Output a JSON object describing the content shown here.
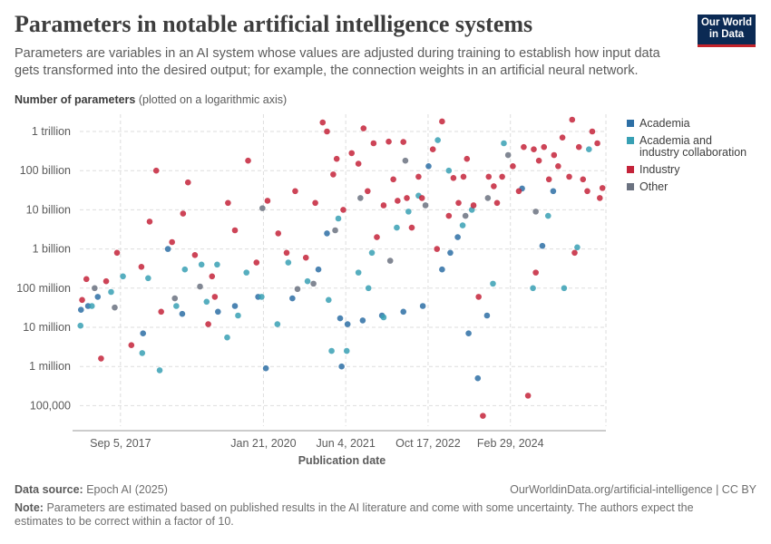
{
  "title": "Parameters in notable artificial intelligence systems",
  "subtitle": "Parameters are variables in an AI system whose values are adjusted during training to establish how input data gets transformed into the desired output; for example, the connection weights in an artificial neural network.",
  "logo": {
    "line1": "Our World",
    "line2": "in Data"
  },
  "y_axis_title": {
    "bold": "Number of parameters",
    "note": "(plotted on a logarithmic axis)"
  },
  "footer": {
    "source_label": "Data source:",
    "source": "Epoch AI (2025)",
    "url": "OurWorldinData.org/artificial-intelligence | CC BY",
    "note_label": "Note:",
    "note": "Parameters are estimated based on published results in the AI literature and come with some uncertainty. The authors expect the estimates to be correct within a factor of 10."
  },
  "chart_data": {
    "type": "scatter",
    "xlabel": "Publication date",
    "ylabel": "Number of parameters",
    "y_scale": "log",
    "xlim": [
      "2017-01-01",
      "2025-10-01"
    ],
    "ylim": [
      30000,
      2000000000000
    ],
    "x_ticks": [
      {
        "date": "2017-09-05",
        "label": "Sep 5, 2017"
      },
      {
        "date": "2020-01-21",
        "label": "Jan 21, 2020"
      },
      {
        "date": "2021-06-04",
        "label": "Jun 4, 2021"
      },
      {
        "date": "2022-10-17",
        "label": "Oct 17, 2022"
      },
      {
        "date": "2024-02-29",
        "label": "Feb 29, 2024"
      }
    ],
    "y_ticks": [
      {
        "value": 100000,
        "label": "100,000"
      },
      {
        "value": 1000000,
        "label": "1 million"
      },
      {
        "value": 10000000,
        "label": "10 million"
      },
      {
        "value": 100000000,
        "label": "100 million"
      },
      {
        "value": 1000000000,
        "label": "1 billion"
      },
      {
        "value": 10000000000,
        "label": "10 billion"
      },
      {
        "value": 100000000000,
        "label": "100 billion"
      },
      {
        "value": 1000000000000,
        "label": "1 trillion"
      }
    ],
    "grid": "dashed",
    "legend_position": "right",
    "series": [
      {
        "name": "Academia",
        "color": "#2d6fa5",
        "points": [
          [
            "2017-01-08",
            28000000
          ],
          [
            "2017-02-20",
            35000000
          ],
          [
            "2017-04-20",
            60000000
          ],
          [
            "2018-01-20",
            7000000
          ],
          [
            "2018-06-20",
            1000000000
          ],
          [
            "2018-09-15",
            22000000
          ],
          [
            "2019-04-20",
            25000000
          ],
          [
            "2019-08-01",
            35000000
          ],
          [
            "2019-12-20",
            60000000
          ],
          [
            "2020-02-05",
            900000
          ],
          [
            "2020-07-15",
            55000000
          ],
          [
            "2020-12-20",
            300000000
          ],
          [
            "2021-02-10",
            2500000000
          ],
          [
            "2021-05-01",
            17000000
          ],
          [
            "2021-05-10",
            1000000
          ],
          [
            "2021-06-15",
            12000000
          ],
          [
            "2021-09-15",
            15000000
          ],
          [
            "2022-01-10",
            20000000
          ],
          [
            "2022-05-20",
            25000000
          ],
          [
            "2022-09-15",
            35000000
          ],
          [
            "2023-01-10",
            300000000
          ],
          [
            "2023-04-15",
            2000000000
          ],
          [
            "2023-06-20",
            7000000
          ],
          [
            "2023-08-15",
            500000
          ],
          [
            "2023-10-10",
            20000000
          ],
          [
            "2024-05-10",
            35000000000
          ],
          [
            "2024-09-10",
            1200000000
          ],
          [
            "2024-11-15",
            30000000000
          ],
          [
            "2022-10-20",
            130000000000
          ],
          [
            "2023-03-01",
            800000000
          ]
        ]
      },
      {
        "name": "Academia and industry collaboration",
        "color": "#38a0b4",
        "points": [
          [
            "2017-01-05",
            11000000
          ],
          [
            "2017-03-15",
            35000000
          ],
          [
            "2017-07-10",
            80000000
          ],
          [
            "2017-09-20",
            200000000
          ],
          [
            "2018-01-15",
            2200000
          ],
          [
            "2018-02-20",
            180000000
          ],
          [
            "2018-05-01",
            800000
          ],
          [
            "2018-08-10",
            35000000
          ],
          [
            "2018-10-01",
            300000000
          ],
          [
            "2019-01-10",
            400000000
          ],
          [
            "2019-02-10",
            45000000
          ],
          [
            "2019-04-15",
            400000000
          ],
          [
            "2019-06-15",
            5500000
          ],
          [
            "2019-08-20",
            20000000
          ],
          [
            "2019-10-10",
            250000000
          ],
          [
            "2020-01-10",
            60000000
          ],
          [
            "2020-04-15",
            12000000
          ],
          [
            "2020-06-20",
            450000000
          ],
          [
            "2020-10-15",
            150000000
          ],
          [
            "2021-02-20",
            50000000
          ],
          [
            "2021-03-10",
            2500000
          ],
          [
            "2021-04-20",
            6000000000
          ],
          [
            "2021-06-10",
            2500000
          ],
          [
            "2021-08-20",
            250000000
          ],
          [
            "2021-10-20",
            100000000
          ],
          [
            "2022-01-20",
            18000000
          ],
          [
            "2022-04-10",
            3500000000
          ],
          [
            "2022-06-20",
            9000000000
          ],
          [
            "2022-08-20",
            23000000000
          ],
          [
            "2022-12-15",
            600000000000
          ],
          [
            "2023-02-20",
            100000000000
          ],
          [
            "2023-05-15",
            4000000000
          ],
          [
            "2023-07-10",
            10000000000
          ],
          [
            "2023-11-15",
            130000000
          ],
          [
            "2024-01-20",
            500000000000
          ],
          [
            "2024-07-15",
            100000000
          ],
          [
            "2025-01-20",
            100000000
          ],
          [
            "2025-04-10",
            1100000000
          ],
          [
            "2025-06-20",
            350000000000
          ],
          [
            "2021-11-10",
            800000000
          ],
          [
            "2024-10-15",
            7000000000
          ]
        ]
      },
      {
        "name": "Industry",
        "color": "#c4233a",
        "points": [
          [
            "2017-01-15",
            50000000
          ],
          [
            "2017-02-10",
            170000000
          ],
          [
            "2017-05-10",
            1600000
          ],
          [
            "2017-06-10",
            150000000
          ],
          [
            "2017-08-15",
            800000000
          ],
          [
            "2017-11-10",
            3500000
          ],
          [
            "2018-01-10",
            350000000
          ],
          [
            "2018-03-01",
            5000000000
          ],
          [
            "2018-04-10",
            100000000000
          ],
          [
            "2018-05-10",
            25000000
          ],
          [
            "2018-07-15",
            1500000000
          ],
          [
            "2018-09-20",
            8000000000
          ],
          [
            "2018-10-20",
            50000000000
          ],
          [
            "2018-12-01",
            700000000
          ],
          [
            "2019-02-20",
            12000000
          ],
          [
            "2019-03-15",
            200000000
          ],
          [
            "2019-04-01",
            60000000
          ],
          [
            "2019-06-20",
            15000000000
          ],
          [
            "2019-08-01",
            3000000000
          ],
          [
            "2019-10-20",
            180000000000
          ],
          [
            "2019-12-10",
            450000000
          ],
          [
            "2020-02-15",
            17000000000
          ],
          [
            "2020-04-20",
            2500000000
          ],
          [
            "2020-06-10",
            800000000
          ],
          [
            "2020-08-01",
            30000000000
          ],
          [
            "2020-10-05",
            600000000
          ],
          [
            "2020-12-01",
            15000000000
          ],
          [
            "2021-01-15",
            1700000000000
          ],
          [
            "2021-02-10",
            1000000000000
          ],
          [
            "2021-03-20",
            80000000000
          ],
          [
            "2021-04-10",
            200000000000
          ],
          [
            "2021-05-20",
            10000000000
          ],
          [
            "2021-07-10",
            280000000000
          ],
          [
            "2021-08-20",
            150000000000
          ],
          [
            "2021-09-20",
            1200000000000
          ],
          [
            "2021-10-15",
            30000000000
          ],
          [
            "2021-11-20",
            500000000000
          ],
          [
            "2021-12-10",
            2000000000
          ],
          [
            "2022-01-20",
            13000000000
          ],
          [
            "2022-02-20",
            550000000000
          ],
          [
            "2022-03-20",
            60000000000
          ],
          [
            "2022-04-15",
            17000000000
          ],
          [
            "2022-05-20",
            540000000000
          ],
          [
            "2022-06-10",
            20000000000
          ],
          [
            "2022-07-10",
            3500000000
          ],
          [
            "2022-08-20",
            70000000000
          ],
          [
            "2022-09-10",
            20000000000
          ],
          [
            "2022-11-15",
            350000000000
          ],
          [
            "2022-12-10",
            1000000000
          ],
          [
            "2023-01-10",
            1800000000000
          ],
          [
            "2023-02-20",
            7000000000
          ],
          [
            "2023-03-20",
            65000000000
          ],
          [
            "2023-04-20",
            15000000000
          ],
          [
            "2023-05-20",
            70000000000
          ],
          [
            "2023-06-10",
            200000000000
          ],
          [
            "2023-07-20",
            13000000000
          ],
          [
            "2023-08-20",
            60000000
          ],
          [
            "2023-09-15",
            55000
          ],
          [
            "2023-10-20",
            70000000000
          ],
          [
            "2023-11-20",
            40000000000
          ],
          [
            "2023-12-10",
            15000000000
          ],
          [
            "2024-01-10",
            70000000000
          ],
          [
            "2024-03-15",
            130000000000
          ],
          [
            "2024-04-20",
            30000000000
          ],
          [
            "2024-05-20",
            400000000000
          ],
          [
            "2024-06-15",
            180000
          ],
          [
            "2024-07-20",
            350000000000
          ],
          [
            "2024-08-20",
            180000000000
          ],
          [
            "2024-09-20",
            400000000000
          ],
          [
            "2024-10-20",
            60000000000
          ],
          [
            "2024-11-20",
            250000000000
          ],
          [
            "2024-12-15",
            130000000000
          ],
          [
            "2025-01-10",
            700000000000
          ],
          [
            "2025-02-20",
            70000000000
          ],
          [
            "2025-03-10",
            2000000000000
          ],
          [
            "2025-04-20",
            400000000000
          ],
          [
            "2025-05-15",
            60000000000
          ],
          [
            "2025-06-10",
            30000000000
          ],
          [
            "2025-07-10",
            1000000000000
          ],
          [
            "2025-08-10",
            500000000000
          ],
          [
            "2025-08-25",
            20000000000
          ],
          [
            "2025-09-10",
            36000000000
          ],
          [
            "2024-08-01",
            250000000
          ],
          [
            "2025-03-25",
            800000000
          ]
        ]
      },
      {
        "name": "Other",
        "color": "#6b7280",
        "points": [
          [
            "2017-04-01",
            100000000
          ],
          [
            "2017-08-01",
            32000000
          ],
          [
            "2018-08-01",
            55000000
          ],
          [
            "2019-01-01",
            110000000
          ],
          [
            "2020-01-15",
            11000000000
          ],
          [
            "2020-08-15",
            95000000
          ],
          [
            "2020-11-20",
            130000000
          ],
          [
            "2021-04-01",
            3000000000
          ],
          [
            "2021-09-01",
            20000000000
          ],
          [
            "2022-03-01",
            500000000
          ],
          [
            "2022-06-01",
            180000000000
          ],
          [
            "2022-10-01",
            13000000000
          ],
          [
            "2023-06-01",
            7000000000
          ],
          [
            "2023-10-15",
            20000000000
          ],
          [
            "2024-02-15",
            250000000000
          ],
          [
            "2024-08-01",
            9000000000
          ]
        ]
      }
    ]
  }
}
